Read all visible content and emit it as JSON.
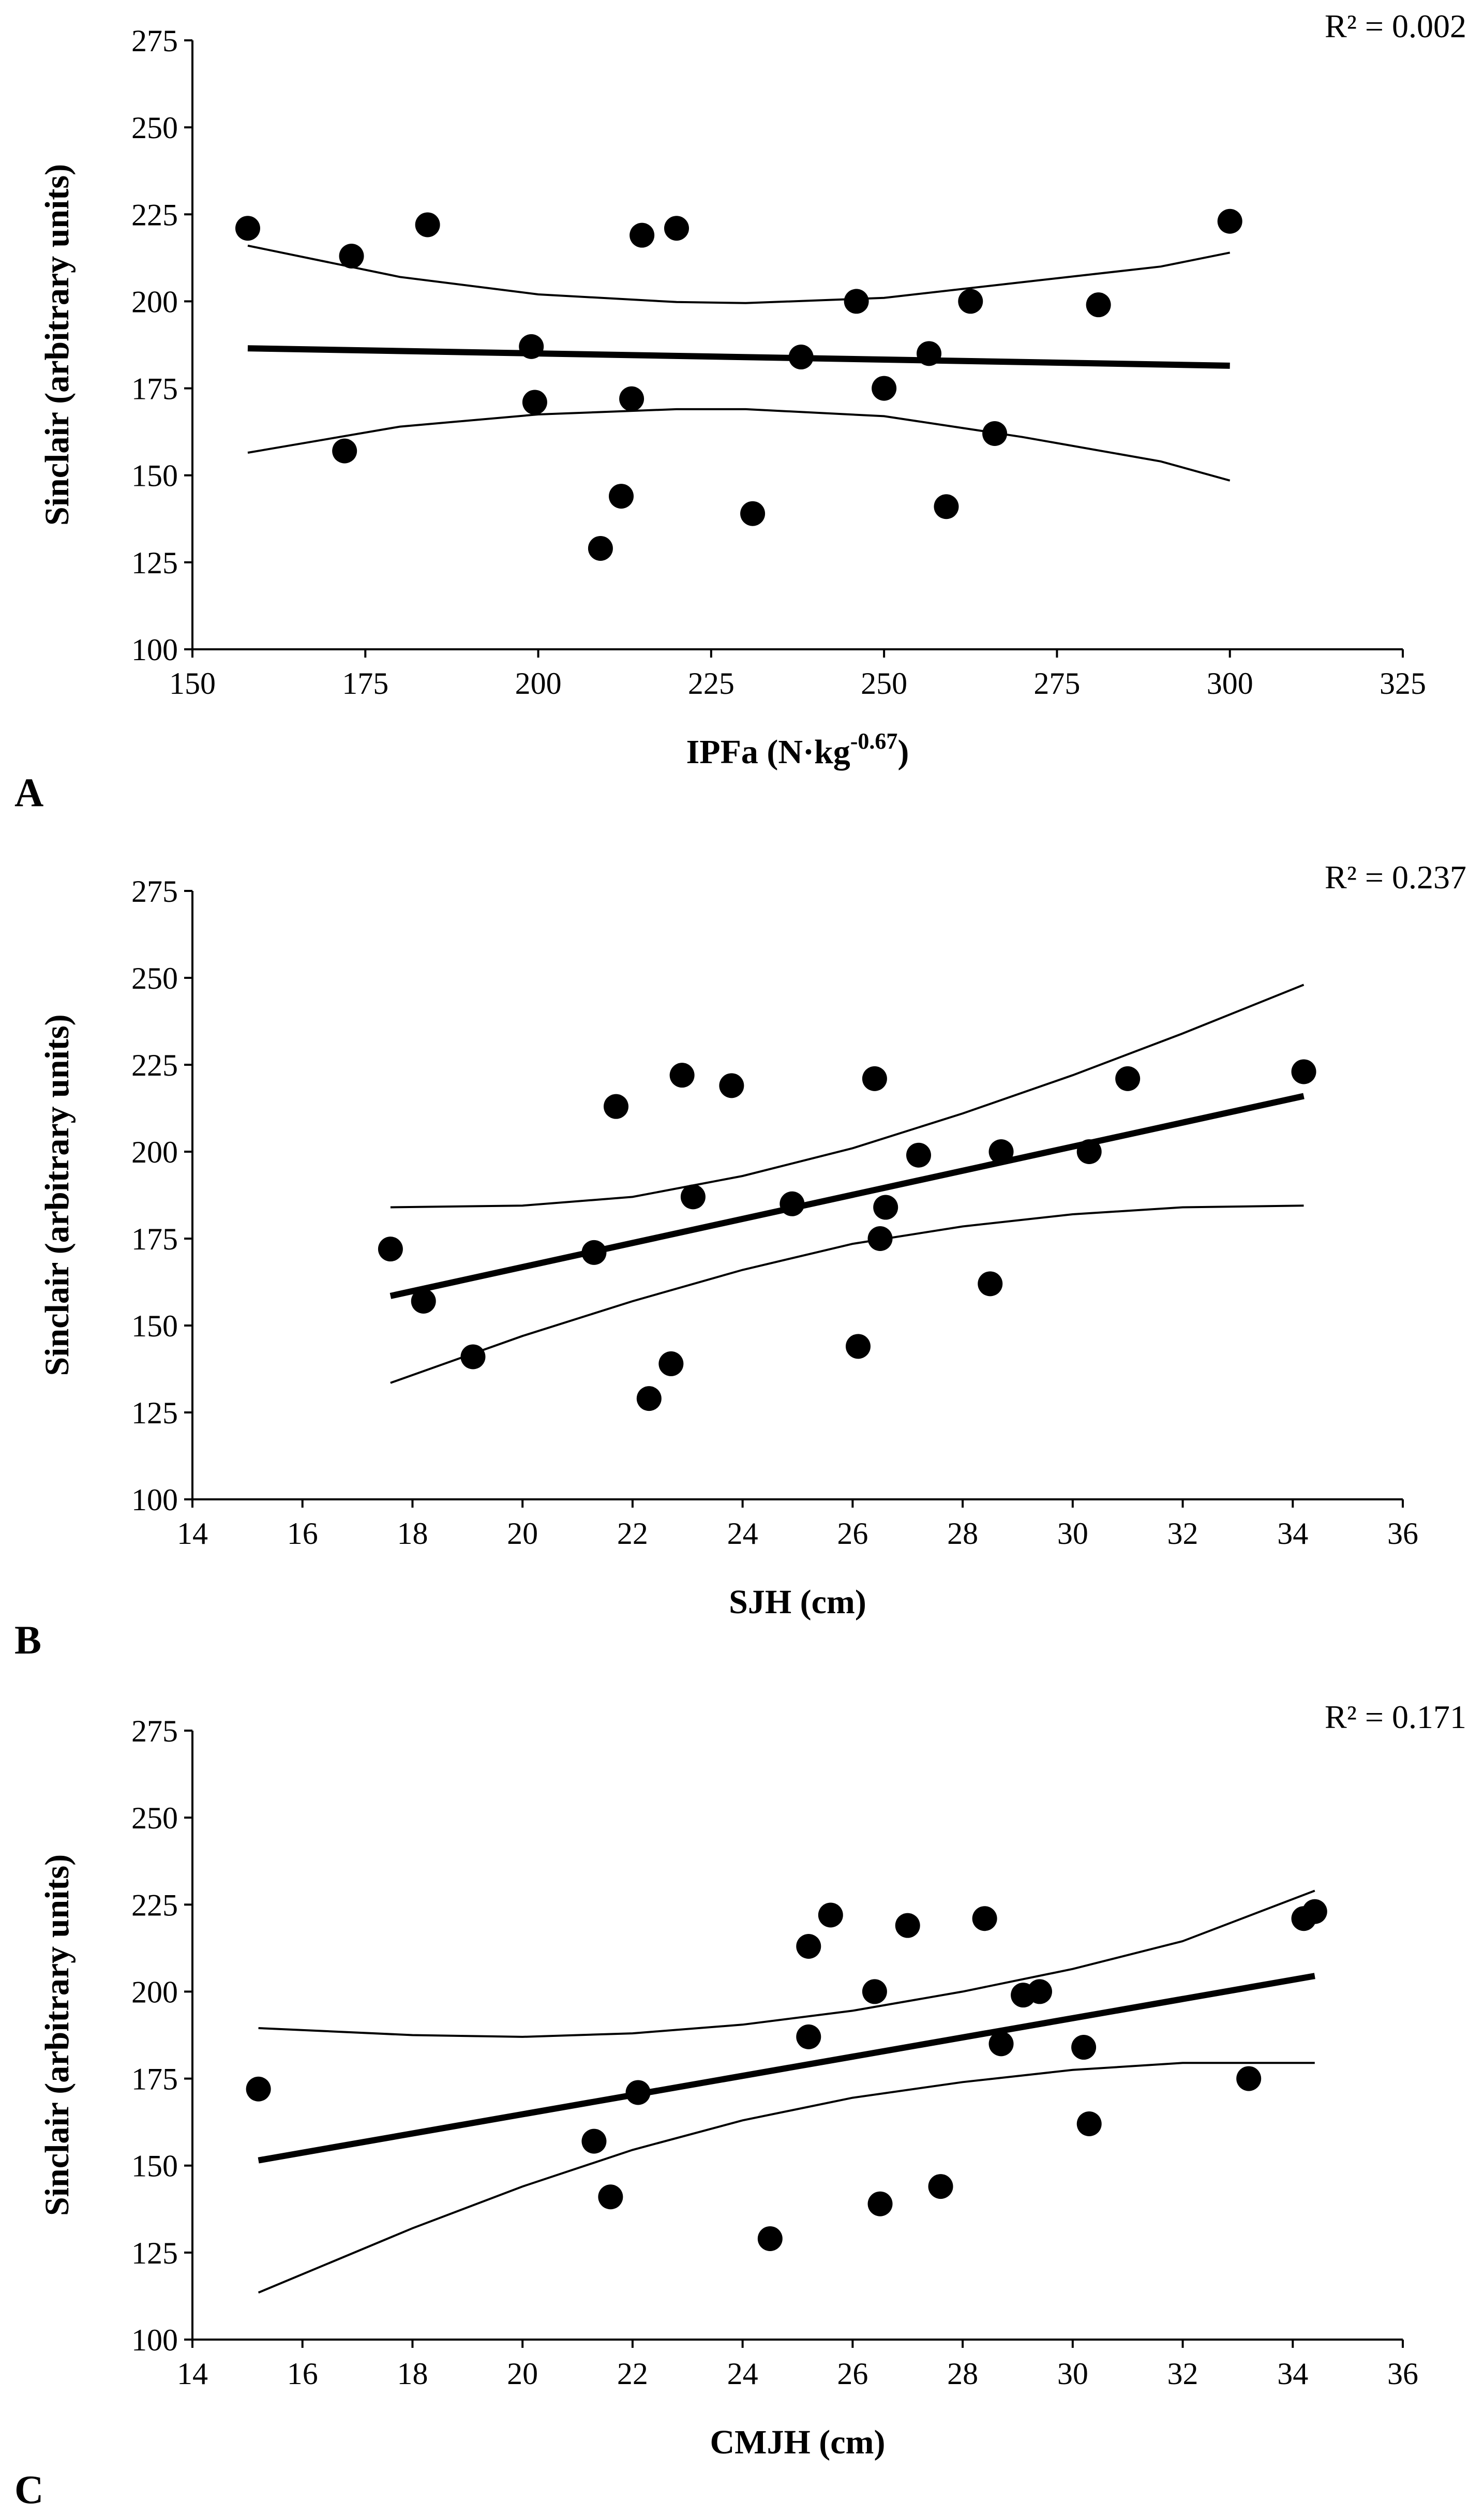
{
  "chart_data": [
    {
      "type": "scatter",
      "panel_label": "A",
      "xlabel": "IPFa (N·kg",
      "xlabel_sup": "-0.67",
      "xlabel_end": ")",
      "ylabel": "Sinclair (arbitrary units)",
      "r2": "R² = 0.002",
      "xlim": [
        150,
        325
      ],
      "xticks": [
        150,
        175,
        200,
        225,
        250,
        275,
        300,
        325
      ],
      "ylim": [
        100,
        275
      ],
      "yticks": [
        100,
        125,
        150,
        175,
        200,
        225,
        250,
        275
      ],
      "points": [
        {
          "x": 158,
          "y": 221
        },
        {
          "x": 172,
          "y": 157
        },
        {
          "x": 173,
          "y": 213
        },
        {
          "x": 184,
          "y": 222
        },
        {
          "x": 199,
          "y": 187
        },
        {
          "x": 199.5,
          "y": 171
        },
        {
          "x": 209,
          "y": 129
        },
        {
          "x": 212,
          "y": 144
        },
        {
          "x": 213.5,
          "y": 172
        },
        {
          "x": 215,
          "y": 219
        },
        {
          "x": 220,
          "y": 221
        },
        {
          "x": 231,
          "y": 139
        },
        {
          "x": 238,
          "y": 184
        },
        {
          "x": 246,
          "y": 200
        },
        {
          "x": 250,
          "y": 175
        },
        {
          "x": 256.5,
          "y": 185
        },
        {
          "x": 259,
          "y": 141
        },
        {
          "x": 262.5,
          "y": 200
        },
        {
          "x": 266,
          "y": 162
        },
        {
          "x": 281,
          "y": 199
        },
        {
          "x": 300,
          "y": 223
        }
      ],
      "fit_line": {
        "x": [
          158,
          300
        ],
        "y": [
          186.5,
          181.5
        ]
      },
      "ci_upper": {
        "x": [
          158,
          180,
          200,
          220,
          230,
          250,
          270,
          290,
          300
        ],
        "y": [
          216,
          207,
          202,
          199.8,
          199.5,
          201,
          205.5,
          210,
          214
        ]
      },
      "ci_lower": {
        "x": [
          158,
          180,
          200,
          220,
          230,
          250,
          270,
          290,
          300
        ],
        "y": [
          156.5,
          164,
          167.5,
          169,
          169,
          167,
          161,
          154,
          148.5
        ]
      }
    },
    {
      "type": "scatter",
      "panel_label": "B",
      "xlabel": "SJH (cm)",
      "ylabel": "Sinclair (arbitrary units)",
      "r2": "R² = 0.237",
      "xlim": [
        14,
        36
      ],
      "xticks": [
        14,
        16,
        18,
        20,
        22,
        24,
        26,
        28,
        30,
        32,
        34,
        36
      ],
      "ylim": [
        100,
        275
      ],
      "yticks": [
        100,
        125,
        150,
        175,
        200,
        225,
        250,
        275
      ],
      "points": [
        {
          "x": 17.6,
          "y": 172
        },
        {
          "x": 18.2,
          "y": 157
        },
        {
          "x": 19.1,
          "y": 141
        },
        {
          "x": 21.3,
          "y": 171
        },
        {
          "x": 21.7,
          "y": 213
        },
        {
          "x": 22.3,
          "y": 129
        },
        {
          "x": 22.7,
          "y": 139
        },
        {
          "x": 22.9,
          "y": 222
        },
        {
          "x": 23.1,
          "y": 187
        },
        {
          "x": 23.8,
          "y": 219
        },
        {
          "x": 24.9,
          "y": 185
        },
        {
          "x": 26.1,
          "y": 144
        },
        {
          "x": 26.4,
          "y": 221
        },
        {
          "x": 26.5,
          "y": 175
        },
        {
          "x": 26.6,
          "y": 184
        },
        {
          "x": 27.2,
          "y": 199
        },
        {
          "x": 28.5,
          "y": 162
        },
        {
          "x": 28.7,
          "y": 200
        },
        {
          "x": 30.3,
          "y": 200
        },
        {
          "x": 31.0,
          "y": 221
        },
        {
          "x": 34.2,
          "y": 223
        }
      ],
      "fit_line": {
        "x": [
          17.6,
          34.2
        ],
        "y": [
          158.5,
          216
        ]
      },
      "ci_upper": {
        "x": [
          17.6,
          20,
          22,
          24,
          26,
          28,
          30,
          32,
          34.2
        ],
        "y": [
          184,
          184.5,
          187,
          193,
          201,
          211,
          222,
          234,
          248
        ]
      },
      "ci_lower": {
        "x": [
          17.6,
          20,
          22,
          24,
          26,
          28,
          30,
          32,
          34.2
        ],
        "y": [
          133.5,
          147,
          157,
          166,
          173.5,
          178.5,
          182,
          184,
          184.5
        ]
      }
    },
    {
      "type": "scatter",
      "panel_label": "C",
      "xlabel": "CMJH (cm)",
      "ylabel": "Sinclair (arbitrary units)",
      "r2": "R² = 0.171",
      "xlim": [
        14,
        36
      ],
      "xticks": [
        14,
        16,
        18,
        20,
        22,
        24,
        26,
        28,
        30,
        32,
        34,
        36
      ],
      "ylim": [
        100,
        275
      ],
      "yticks": [
        100,
        125,
        150,
        175,
        200,
        225,
        250,
        275
      ],
      "points": [
        {
          "x": 15.2,
          "y": 172
        },
        {
          "x": 21.3,
          "y": 157
        },
        {
          "x": 21.6,
          "y": 141
        },
        {
          "x": 22.1,
          "y": 171
        },
        {
          "x": 24.5,
          "y": 129
        },
        {
          "x": 25.2,
          "y": 187
        },
        {
          "x": 25.2,
          "y": 213
        },
        {
          "x": 25.6,
          "y": 222
        },
        {
          "x": 26.4,
          "y": 200
        },
        {
          "x": 26.5,
          "y": 139
        },
        {
          "x": 27.0,
          "y": 219
        },
        {
          "x": 27.6,
          "y": 144
        },
        {
          "x": 28.4,
          "y": 221
        },
        {
          "x": 28.7,
          "y": 185
        },
        {
          "x": 29.1,
          "y": 199
        },
        {
          "x": 29.4,
          "y": 200
        },
        {
          "x": 30.2,
          "y": 184
        },
        {
          "x": 30.3,
          "y": 162
        },
        {
          "x": 33.2,
          "y": 175
        },
        {
          "x": 34.2,
          "y": 221
        },
        {
          "x": 34.4,
          "y": 223
        }
      ],
      "fit_line": {
        "x": [
          15.2,
          34.4
        ],
        "y": [
          151.5,
          204.5
        ]
      },
      "ci_upper": {
        "x": [
          15.2,
          18,
          20,
          22,
          24,
          26,
          28,
          30,
          32,
          34.4
        ],
        "y": [
          189.5,
          187.5,
          187,
          188,
          190.5,
          194.5,
          200,
          206.5,
          214.5,
          229
        ]
      },
      "ci_lower": {
        "x": [
          15.2,
          18,
          20,
          22,
          24,
          26,
          28,
          30,
          32,
          34.4
        ],
        "y": [
          113.5,
          132,
          144,
          154.5,
          163,
          169.5,
          174,
          177.5,
          179.5,
          179.5
        ]
      }
    }
  ]
}
